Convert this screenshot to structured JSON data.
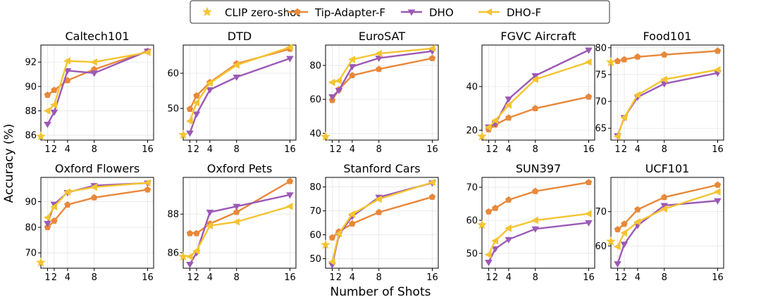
{
  "figure": {
    "ylabel": "Accuracy (%)",
    "xlabel": "Number of Shots",
    "legend": [
      {
        "name": "CLIP zero-shot",
        "color": "#f4c430",
        "marker": "star"
      },
      {
        "name": "Tip-Adapter-F",
        "color": "#e8883a",
        "marker": "pentagon"
      },
      {
        "name": "DHO",
        "color": "#9b59b6",
        "marker": "triangle-down"
      },
      {
        "name": "DHO-F",
        "color": "#f4c430",
        "marker": "triangle-left"
      }
    ]
  },
  "chart_data": [
    {
      "type": "line",
      "title": "Caltech101",
      "x": [
        1,
        2,
        4,
        8,
        16
      ],
      "ylim": [
        85.6,
        93.4
      ],
      "yticks": [
        86,
        88,
        90,
        92
      ],
      "zero_shot": 85.9,
      "series": [
        {
          "name": "Tip-Adapter-F",
          "values": [
            89.3,
            89.7,
            90.5,
            91.4,
            92.9
          ]
        },
        {
          "name": "DHO",
          "values": [
            86.9,
            87.9,
            91.3,
            91.1,
            92.9
          ]
        },
        {
          "name": "DHO-F",
          "values": [
            88.0,
            88.5,
            92.1,
            92.0,
            92.8
          ]
        }
      ]
    },
    {
      "type": "line",
      "title": "DTD",
      "x": [
        1,
        2,
        4,
        8,
        16
      ],
      "ylim": [
        41,
        68
      ],
      "yticks": [
        50,
        60
      ],
      "zero_shot": 42.5,
      "series": [
        {
          "name": "Tip-Adapter-F",
          "values": [
            49.8,
            53.6,
            57.4,
            62.7,
            66.9
          ]
        },
        {
          "name": "DHO",
          "values": [
            43.0,
            48.4,
            55.3,
            58.9,
            64.2
          ]
        },
        {
          "name": "DHO-F",
          "values": [
            46.4,
            51.6,
            57.2,
            62.3,
            67.4
          ]
        }
      ]
    },
    {
      "type": "line",
      "title": "EuroSAT",
      "x": [
        1,
        2,
        4,
        8,
        16
      ],
      "ylim": [
        36,
        92
      ],
      "yticks": [
        40,
        60,
        80
      ],
      "zero_shot": 38.0,
      "series": [
        {
          "name": "Tip-Adapter-F",
          "values": [
            59.5,
            65.8,
            74.1,
            77.8,
            84.2
          ]
        },
        {
          "name": "DHO",
          "values": [
            61.5,
            65.3,
            79.3,
            84.3,
            88.4
          ]
        },
        {
          "name": "DHO-F",
          "values": [
            70.0,
            71.0,
            83.5,
            87.0,
            90.0
          ]
        }
      ]
    },
    {
      "type": "line",
      "title": "FGVC Aircraft",
      "x": [
        1,
        2,
        4,
        8,
        16
      ],
      "ylim": [
        15.5,
        59
      ],
      "yticks": [
        20,
        40
      ],
      "zero_shot": 17.2,
      "series": [
        {
          "name": "Tip-Adapter-F",
          "values": [
            20.3,
            22.5,
            25.7,
            30.0,
            35.3
          ]
        },
        {
          "name": "DHO",
          "values": [
            21.5,
            23.0,
            34.3,
            45.0,
            56.7
          ]
        },
        {
          "name": "DHO-F",
          "values": [
            21.3,
            24.5,
            31.5,
            43.3,
            51.2
          ]
        }
      ]
    },
    {
      "type": "line",
      "title": "Food101",
      "x": [
        1,
        2,
        4,
        8,
        16
      ],
      "ylim": [
        62.8,
        80.5
      ],
      "yticks": [
        65,
        70,
        75,
        80
      ],
      "zero_shot": 77.3,
      "series": [
        {
          "name": "Tip-Adapter-F",
          "values": [
            77.5,
            77.8,
            78.3,
            78.7,
            79.4
          ]
        },
        {
          "name": "DHO",
          "values": [
            63.6,
            67.0,
            70.8,
            73.3,
            75.3
          ]
        },
        {
          "name": "DHO-F",
          "values": [
            63.5,
            67.0,
            71.2,
            74.1,
            75.9
          ]
        }
      ]
    },
    {
      "type": "line",
      "title": "Oxford Flowers",
      "x": [
        1,
        2,
        4,
        8,
        16
      ],
      "ylim": [
        64,
        99.5
      ],
      "yticks": [
        70,
        80,
        90
      ],
      "zero_shot": 66.2,
      "series": [
        {
          "name": "Tip-Adapter-F",
          "values": [
            80.0,
            82.5,
            88.8,
            91.6,
            94.7
          ]
        },
        {
          "name": "DHO",
          "values": [
            81.5,
            89.0,
            93.6,
            96.3,
            97.3
          ]
        },
        {
          "name": "DHO-F",
          "values": [
            83.8,
            88.0,
            93.8,
            95.7,
            97.4
          ]
        }
      ]
    },
    {
      "type": "line",
      "title": "Oxford Pets",
      "x": [
        1,
        2,
        4,
        8,
        16
      ],
      "ylim": [
        85.2,
        89.9
      ],
      "yticks": [
        86,
        88
      ],
      "zero_shot": 85.8,
      "series": [
        {
          "name": "Tip-Adapter-F",
          "values": [
            87.0,
            87.0,
            87.5,
            88.1,
            89.7
          ]
        },
        {
          "name": "DHO",
          "values": [
            85.4,
            86.0,
            88.1,
            88.4,
            89.0
          ]
        },
        {
          "name": "DHO-F",
          "values": [
            85.8,
            86.1,
            87.4,
            87.6,
            88.4
          ]
        }
      ]
    },
    {
      "type": "line",
      "title": "Stanford Cars",
      "x": [
        1,
        2,
        4,
        8,
        16
      ],
      "ylim": [
        46,
        84
      ],
      "yticks": [
        50,
        60,
        70,
        80
      ],
      "zero_shot": 55.8,
      "series": [
        {
          "name": "Tip-Adapter-F",
          "values": [
            58.8,
            61.3,
            64.6,
            69.4,
            75.8
          ]
        },
        {
          "name": "DHO",
          "values": [
            47.4,
            60.0,
            67.7,
            75.7,
            81.7
          ]
        },
        {
          "name": "DHO-F",
          "values": [
            48.7,
            60.5,
            68.6,
            74.9,
            81.9
          ]
        }
      ]
    },
    {
      "type": "line",
      "title": "SUN397",
      "x": [
        1,
        2,
        4,
        8,
        16
      ],
      "ylim": [
        45.5,
        73
      ],
      "yticks": [
        50,
        60,
        70
      ],
      "zero_shot": 58.6,
      "series": [
        {
          "name": "Tip-Adapter-F",
          "values": [
            62.6,
            63.7,
            66.2,
            68.8,
            71.5
          ]
        },
        {
          "name": "DHO",
          "values": [
            47.3,
            51.4,
            54.2,
            57.4,
            59.3
          ]
        },
        {
          "name": "DHO-F",
          "values": [
            49.6,
            53.8,
            57.6,
            60.0,
            62.0
          ]
        }
      ]
    },
    {
      "type": "line",
      "title": "UCF101",
      "x": [
        1,
        2,
        4,
        8,
        16
      ],
      "ylim": [
        53.5,
        80
      ],
      "yticks": [
        60,
        70
      ],
      "zero_shot": 61.3,
      "series": [
        {
          "name": "Tip-Adapter-F",
          "values": [
            64.8,
            66.4,
            70.6,
            74.2,
            77.8
          ]
        },
        {
          "name": "DHO",
          "values": [
            54.8,
            60.5,
            66.0,
            71.8,
            73.2
          ]
        },
        {
          "name": "DHO-F",
          "values": [
            59.8,
            63.8,
            67.0,
            70.8,
            75.8
          ]
        }
      ]
    }
  ]
}
